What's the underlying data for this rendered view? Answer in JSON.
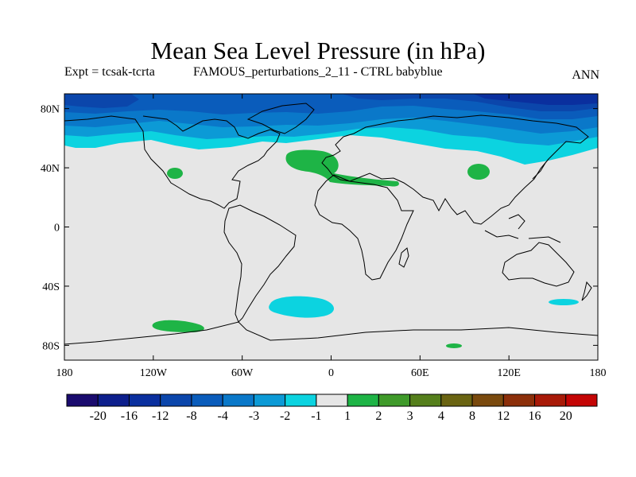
{
  "title": "Mean Sea Level Pressure (in hPa)",
  "left_label": "Expt = tcsak-tcrta",
  "center_label": "FAMOUS_perturbations_2_11 - CTRL babyblue",
  "right_label": "ANN",
  "map": {
    "projection": "cylindrical equidistant",
    "lon_range": [
      -180,
      180
    ],
    "lat_range": [
      -90,
      90
    ],
    "x_ticks": [
      {
        "lon": -180,
        "label": "180"
      },
      {
        "lon": -120,
        "label": "120W"
      },
      {
        "lon": -60,
        "label": "60W"
      },
      {
        "lon": 0,
        "label": "0"
      },
      {
        "lon": 60,
        "label": "60E"
      },
      {
        "lon": 120,
        "label": "120E"
      },
      {
        "lon": 180,
        "label": "180"
      }
    ],
    "y_ticks": [
      {
        "lat": 80,
        "label": "80N"
      },
      {
        "lat": 40,
        "label": "40N"
      },
      {
        "lat": 0,
        "label": "0"
      },
      {
        "lat": -40,
        "label": "40S"
      },
      {
        "lat": -80,
        "label": "80S"
      }
    ]
  },
  "colorbar": {
    "labels": [
      "-20",
      "-16",
      "-12",
      "-8",
      "-4",
      "-3",
      "-2",
      "-1",
      "1",
      "2",
      "3",
      "4",
      "8",
      "12",
      "16",
      "20"
    ],
    "colors": [
      "#1a0b6e",
      "#0d1f8c",
      "#0a2f9e",
      "#0b46ab",
      "#0a5cbb",
      "#0a78c9",
      "#0c9ad6",
      "#0cd3e0",
      "#e6e6e6",
      "#1eb446",
      "#3f9a2a",
      "#557f1c",
      "#6a6412",
      "#7a4a0e",
      "#8c2f0a",
      "#a81a08",
      "#c40505"
    ]
  },
  "chart_data": {
    "type": "filled-contour map",
    "title": "Mean Sea Level Pressure (in hPa)",
    "variable": "Mean sea level pressure difference (hPa)",
    "levels": [
      -20,
      -16,
      -12,
      -8,
      -4,
      -3,
      -2,
      -1,
      1,
      2,
      3,
      4,
      8,
      12,
      16,
      20
    ],
    "regions": [
      {
        "name": "Arctic / high northern latitudes",
        "value_range": [
          -8,
          -4
        ],
        "lat_band": [
          75,
          90
        ]
      },
      {
        "name": "Northern mid-high latitude band",
        "value_range": [
          -3,
          -2
        ],
        "lat_band": [
          60,
          75
        ]
      },
      {
        "name": "Northern transition band",
        "value_range": [
          -2,
          -1
        ],
        "lat_band": [
          55,
          62
        ]
      },
      {
        "name": "Mediterranean / North Africa",
        "value_range": [
          1,
          2
        ],
        "lon_range": [
          -15,
          30
        ],
        "lat_range": [
          30,
          48
        ]
      },
      {
        "name": "Central Asia",
        "value_range": [
          1,
          2
        ],
        "lon_range": [
          95,
          102
        ],
        "lat_range": [
          37,
          43
        ]
      },
      {
        "name": "Southwest North America",
        "value_range": [
          1,
          2
        ],
        "lon_range": [
          -112,
          -105
        ],
        "lat_range": [
          33,
          37
        ]
      },
      {
        "name": "South Atlantic",
        "value_range": [
          -2,
          -1
        ],
        "lon_range": [
          -35,
          0
        ],
        "lat_range": [
          -56,
          -44
        ]
      },
      {
        "name": "Southeast Pacific near Antarctica",
        "value_range": [
          1,
          2
        ],
        "lon_range": [
          -120,
          -90
        ],
        "lat_range": [
          -68,
          -60
        ]
      },
      {
        "name": "South Pacific near New Zealand",
        "value_range": [
          -2,
          -1
        ],
        "lon_range": [
          145,
          165
        ],
        "lat_range": [
          -53,
          -48
        ]
      },
      {
        "name": "East Antarctica",
        "value_range": [
          1,
          2
        ],
        "lon_range": [
          78,
          88
        ],
        "lat_range": [
          -82,
          -79
        ]
      },
      {
        "name": "Rest of globe",
        "value_range": [
          -1,
          1
        ]
      }
    ]
  }
}
